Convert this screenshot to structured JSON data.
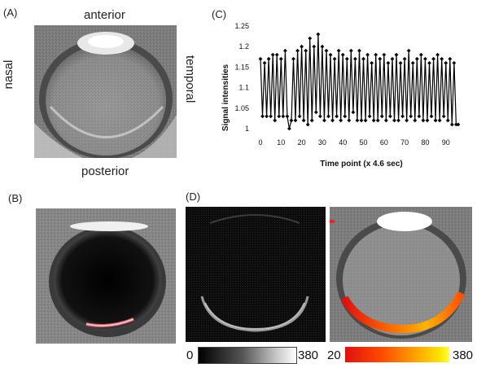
{
  "panels": {
    "a": {
      "label": "(A)",
      "orientation": {
        "anterior": "anterior",
        "posterior": "posterior",
        "nasal": "nasal",
        "temporal": "temporal"
      }
    },
    "b": {
      "label": "(B)"
    },
    "c": {
      "label": "(C)"
    },
    "d": {
      "label": "(D)",
      "colorbar_gray": {
        "min": "0",
        "max": "380"
      },
      "colorbar_heat": {
        "min": "20",
        "max": "380"
      }
    }
  },
  "chart_data": {
    "type": "line",
    "xlabel": "Time point (x 4.6 sec)",
    "ylabel": "Signal intensities",
    "xlim": [
      0,
      98
    ],
    "ylim": [
      1.0,
      1.25
    ],
    "xticks": [
      "0",
      "10",
      "20",
      "30",
      "40",
      "50",
      "60",
      "70",
      "80",
      "90"
    ],
    "yticks": [
      "1",
      "1.05",
      "1.1",
      "1.15",
      "1.2",
      "1.25"
    ],
    "grid": false,
    "marker": "diamond",
    "series": [
      {
        "values": [
          1.17,
          1.03,
          1.16,
          1.03,
          1.17,
          1.03,
          1.18,
          1.02,
          1.18,
          1.03,
          1.17,
          1.03,
          1.19,
          1.03,
          1.0,
          1.02,
          1.17,
          1.02,
          1.19,
          1.03,
          1.2,
          1.02,
          1.19,
          1.01,
          1.22,
          1.02,
          1.2,
          1.04,
          1.23,
          1.03,
          1.2,
          1.02,
          1.19,
          1.03,
          1.18,
          1.02,
          1.17,
          1.03,
          1.19,
          1.02,
          1.18,
          1.03,
          1.17,
          1.02,
          1.19,
          1.04,
          1.17,
          1.02,
          1.19,
          1.02,
          1.17,
          1.02,
          1.18,
          1.03,
          1.16,
          1.02,
          1.18,
          1.02,
          1.17,
          1.03,
          1.18,
          1.02,
          1.16,
          1.03,
          1.17,
          1.02,
          1.18,
          1.02,
          1.16,
          1.03,
          1.17,
          1.02,
          1.19,
          1.03,
          1.16,
          1.02,
          1.17,
          1.03,
          1.18,
          1.02,
          1.17,
          1.02,
          1.16,
          1.03,
          1.17,
          1.02,
          1.18,
          1.02,
          1.17,
          1.03,
          1.16,
          1.02,
          1.17,
          1.01,
          1.16,
          1.01,
          1.01
        ]
      }
    ]
  }
}
